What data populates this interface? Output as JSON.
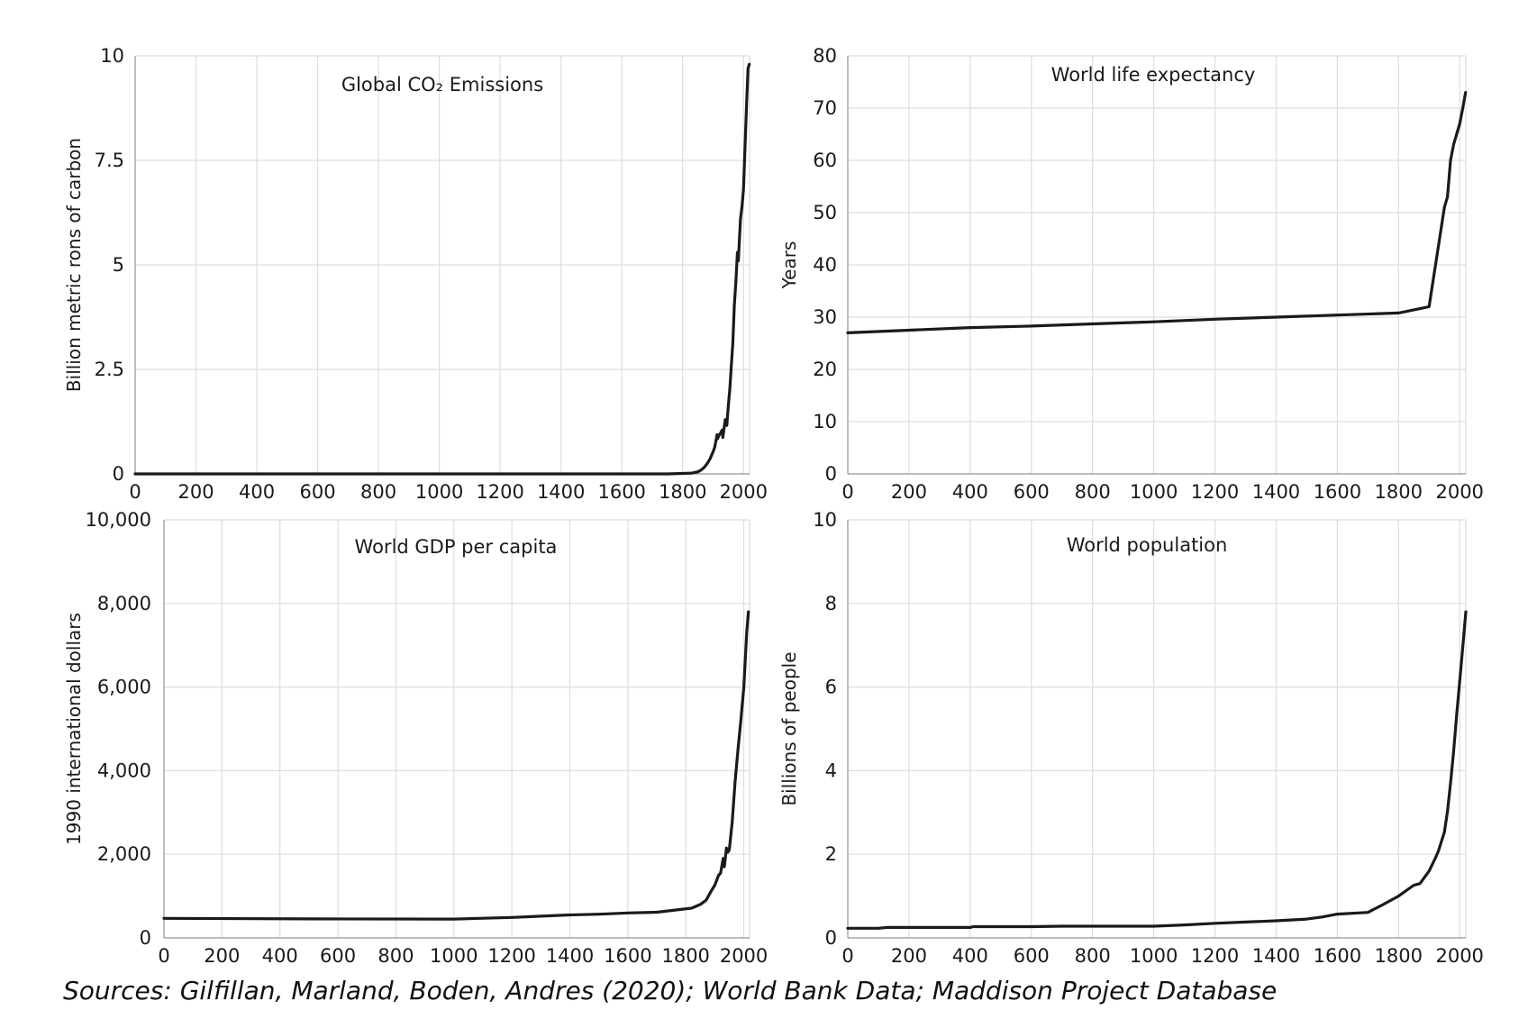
{
  "source_note": "Sources: Gilfillan, Marland, Boden, Andres (2020); World Bank Data; Maddison Project Database",
  "line_color": "#1a1a1a",
  "chart_data": [
    {
      "type": "line",
      "title": "Global CO₂ Emissions",
      "xlabel": "",
      "ylabel": "Billion metric rons of carbon",
      "xlim": [
        0,
        2020
      ],
      "ylim": [
        0,
        10
      ],
      "x_ticks": [
        "0",
        "200",
        "400",
        "600",
        "800",
        "1000",
        "1200",
        "1400",
        "1600",
        "1800",
        "2000"
      ],
      "y_ticks": [
        "0",
        "2.5",
        "5",
        "7.5",
        "10"
      ],
      "grid": true,
      "x": [
        0,
        1750,
        1800,
        1830,
        1850,
        1860,
        1870,
        1880,
        1890,
        1900,
        1905,
        1910,
        1913,
        1915,
        1920,
        1925,
        1930,
        1932,
        1935,
        1940,
        1945,
        1950,
        1955,
        1960,
        1965,
        1970,
        1975,
        1980,
        1983,
        1990,
        1995,
        2000,
        2005,
        2010,
        2015,
        2019
      ],
      "values": [
        0,
        0,
        0.01,
        0.02,
        0.05,
        0.09,
        0.15,
        0.24,
        0.36,
        0.53,
        0.63,
        0.82,
        0.94,
        0.84,
        0.93,
        0.98,
        1.05,
        0.87,
        1.03,
        1.3,
        1.16,
        1.63,
        2.04,
        2.58,
        3.13,
        4.05,
        4.6,
        5.3,
        5.1,
        6.1,
        6.4,
        6.8,
        7.8,
        8.8,
        9.7,
        9.8
      ]
    },
    {
      "type": "line",
      "title": "World life expectancy",
      "xlabel": "",
      "ylabel": "Years",
      "xlim": [
        0,
        2020
      ],
      "ylim": [
        0,
        80
      ],
      "x_ticks": [
        "0",
        "200",
        "400",
        "600",
        "800",
        "1000",
        "1200",
        "1400",
        "1600",
        "1800",
        "2000"
      ],
      "y_ticks": [
        "0",
        "10",
        "20",
        "30",
        "40",
        "50",
        "60",
        "70",
        "80"
      ],
      "grid": true,
      "x": [
        0,
        200,
        400,
        600,
        800,
        1000,
        1200,
        1400,
        1600,
        1800,
        1900,
        1950,
        1960,
        1970,
        1980,
        1990,
        2000,
        2010,
        2019
      ],
      "values": [
        27,
        27.5,
        28,
        28.3,
        28.7,
        29.1,
        29.6,
        30,
        30.4,
        30.8,
        32,
        51,
        53,
        60,
        63,
        65,
        67,
        70,
        73
      ]
    },
    {
      "type": "line",
      "title": "World GDP per capita",
      "xlabel": "",
      "ylabel": "1990 international dollars",
      "xlim": [
        0,
        2020
      ],
      "ylim": [
        0,
        10000
      ],
      "x_ticks": [
        "0",
        "200",
        "400",
        "600",
        "800",
        "1000",
        "1200",
        "1400",
        "1600",
        "1800",
        "2000"
      ],
      "y_ticks": [
        "0",
        "2,000",
        "4,000",
        "6,000",
        "8,000",
        "10,000"
      ],
      "grid": true,
      "x": [
        0,
        500,
        1000,
        1100,
        1200,
        1300,
        1400,
        1500,
        1600,
        1700,
        1820,
        1850,
        1870,
        1890,
        1900,
        1913,
        1920,
        1929,
        1933,
        1940,
        1945,
        1950,
        1960,
        1970,
        1980,
        1990,
        2000,
        2010,
        2016
      ],
      "values": [
        467,
        455,
        450,
        470,
        490,
        520,
        550,
        566,
        596,
        615,
        712,
        800,
        900,
        1150,
        1260,
        1500,
        1550,
        1900,
        1700,
        2150,
        2050,
        2110,
        2770,
        3730,
        4500,
        5200,
        6000,
        7300,
        7800
      ]
    },
    {
      "type": "line",
      "title": "World population",
      "xlabel": "",
      "ylabel": "Billions of people",
      "xlim": [
        0,
        2020
      ],
      "ylim": [
        0,
        10
      ],
      "x_ticks": [
        "0",
        "200",
        "400",
        "600",
        "800",
        "1000",
        "1200",
        "1400",
        "1600",
        "1800",
        "2000"
      ],
      "y_ticks": [
        "0",
        "2",
        "4",
        "6",
        "8",
        "10"
      ],
      "grid": true,
      "x": [
        0,
        100,
        130,
        200,
        400,
        410,
        600,
        700,
        800,
        1000,
        1100,
        1200,
        1300,
        1400,
        1500,
        1550,
        1600,
        1700,
        1750,
        1800,
        1850,
        1870,
        1900,
        1920,
        1930,
        1940,
        1950,
        1960,
        1970,
        1980,
        1990,
        2000,
        2010,
        2020
      ],
      "values": [
        0.23,
        0.23,
        0.25,
        0.25,
        0.25,
        0.27,
        0.27,
        0.28,
        0.28,
        0.28,
        0.31,
        0.35,
        0.38,
        0.41,
        0.45,
        0.5,
        0.57,
        0.61,
        0.8,
        1.0,
        1.26,
        1.3,
        1.6,
        1.9,
        2.07,
        2.3,
        2.53,
        3.02,
        3.7,
        4.45,
        5.33,
        6.14,
        6.96,
        7.8
      ]
    }
  ]
}
